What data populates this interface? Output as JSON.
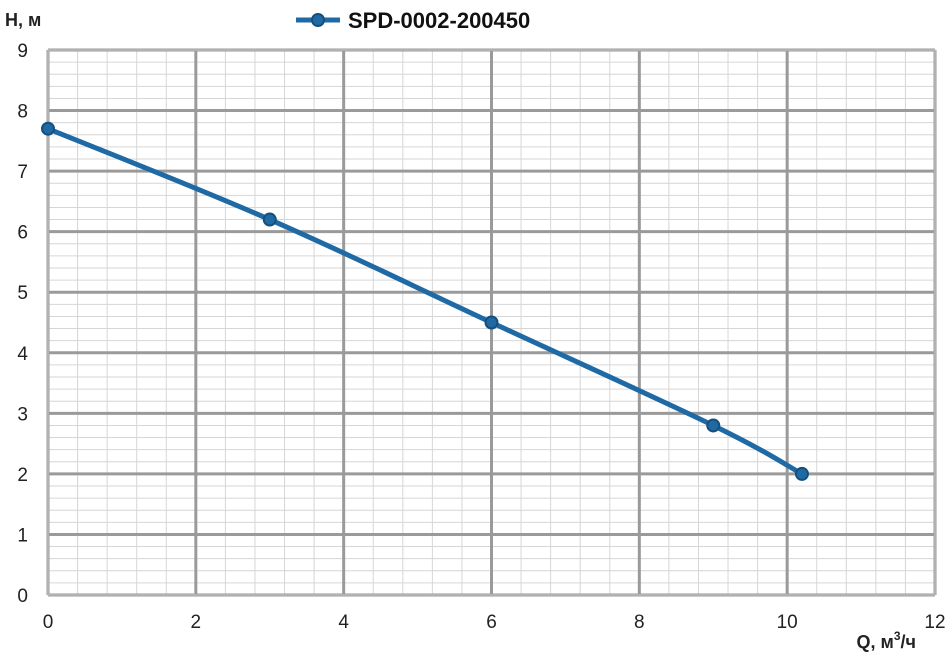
{
  "chart_data": {
    "type": "line",
    "title": "",
    "xlabel": "Q, м",
    "xlabel_sup": "3",
    "xlabel_suffix": "/ч",
    "ylabel": "H, м",
    "xlim": [
      0,
      12
    ],
    "ylim": [
      0,
      9
    ],
    "x_major_ticks": [
      0,
      2,
      4,
      6,
      8,
      10,
      12
    ],
    "y_major_ticks": [
      0,
      1,
      2,
      3,
      4,
      5,
      6,
      7,
      8,
      9
    ],
    "x_minor_step": 0.4,
    "y_minor_step": 0.2,
    "grid": true,
    "legend_position": "top-center",
    "series": [
      {
        "name": "SPD-0002-200450",
        "color": "#1f6aa5",
        "x": [
          0,
          3,
          6,
          9,
          10.2
        ],
        "y": [
          7.7,
          6.2,
          4.5,
          2.8,
          2.0
        ]
      }
    ]
  }
}
